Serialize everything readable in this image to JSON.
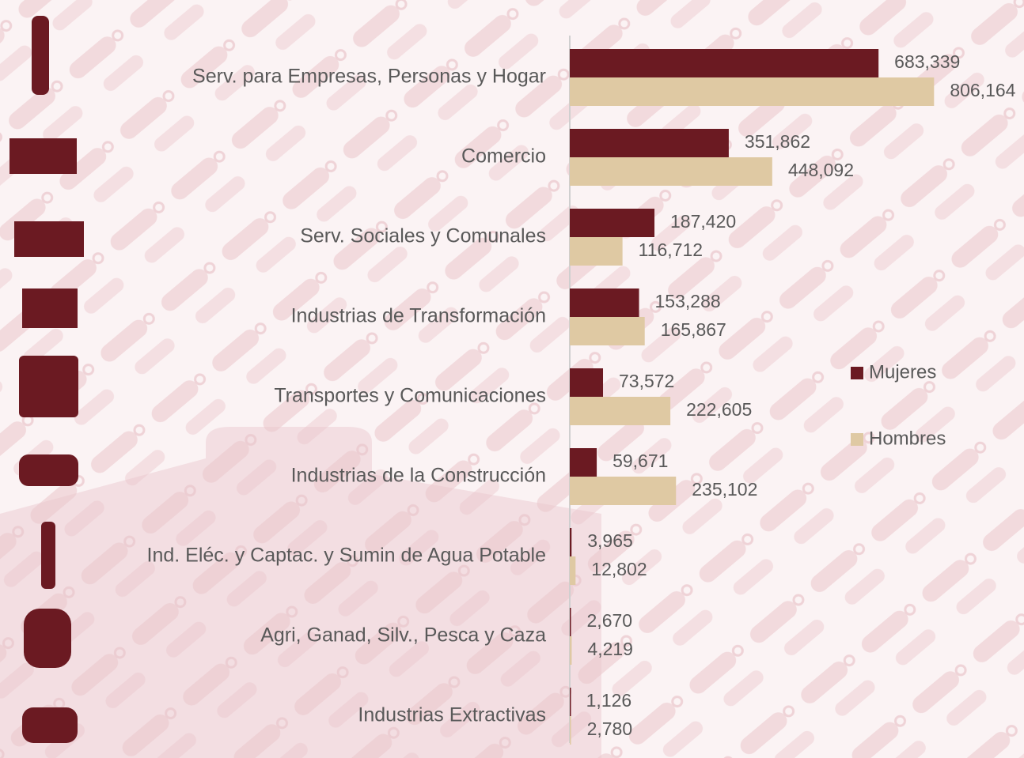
{
  "chart_data": {
    "type": "bar",
    "orientation": "horizontal",
    "categories": [
      "Serv. para Empresas, Personas y Hogar",
      "Comercio",
      "Serv. Sociales y Comunales",
      "Industrias de Transformación",
      "Transportes y Comunicaciones",
      "Industrias de la Construcción",
      "Ind. Eléc. y Captac. y Sumin de Agua Potable",
      "Agri, Ganad, Silv., Pesca y Caza",
      "Industrias Extractivas"
    ],
    "series": [
      {
        "name": "Mujeres",
        "color": "#6b1a22",
        "values": [
          683339,
          351862,
          187420,
          153288,
          73572,
          59671,
          3965,
          2670,
          1126
        ],
        "value_labels": [
          "683,339",
          "351,862",
          "187,420",
          "153,288",
          "73,572",
          "59,671",
          "3,965",
          "2,670",
          "1,126"
        ]
      },
      {
        "name": "Hombres",
        "color": "#dfc9a3",
        "values": [
          806164,
          448092,
          116712,
          165867,
          222605,
          235102,
          12802,
          4219,
          2780
        ],
        "value_labels": [
          "806,164",
          "448,092",
          "116,712",
          "165,867",
          "222,605",
          "235,102",
          "12,802",
          "4,219",
          "2,780"
        ]
      }
    ],
    "xlim": [
      0,
      1000000
    ],
    "legend": "right"
  }
}
